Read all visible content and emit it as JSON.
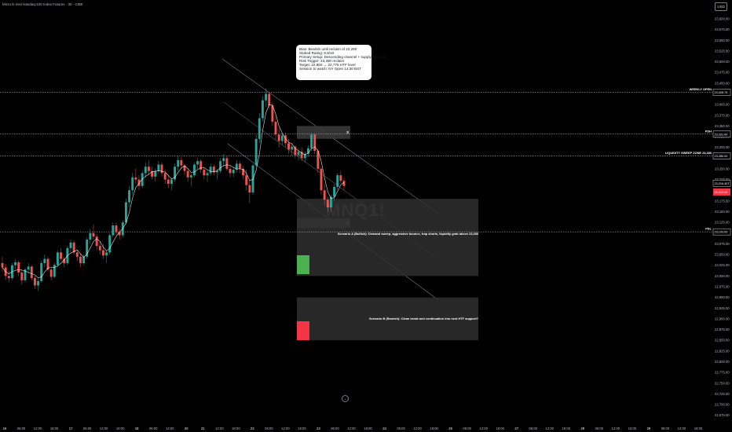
{
  "header": {
    "instrument_title": "Micro E-mini Nasdaq-100 Index Futures · 30 · CME",
    "currency": "USD"
  },
  "info_box": {
    "lines": [
      "Bias: Bearish until reclaim of 23,280",
      "Stoked Rating: 8.8/10",
      "Primary Setup: Descending channel + supply rejection",
      "Risk Trigger: 23,280 reclaim",
      "Target: 22,850 → 22,775 HTF level",
      "Session to watch: NY Open 14:30 BST"
    ]
  },
  "watermark": "MNQ1!",
  "scroll_icon": "down-arrow-icon",
  "chart_data": {
    "type": "candlestick",
    "price_axis": {
      "ylim": [
        22650,
        23625
      ],
      "ticks": [
        "23,600.00",
        "23,575.00",
        "23,550.00",
        "23,525.00",
        "23,500.00",
        "23,475.00",
        "23,450.00",
        "23,425.00",
        "23,400.00",
        "23,375.00",
        "23,350.00",
        "23,325.00",
        "23,300.00",
        "23,275.00",
        "23,250.00",
        "23,225.00",
        "23,200.00",
        "23,175.00",
        "23,150.00",
        "23,125.00",
        "23,100.00",
        "23,075.00",
        "23,050.00",
        "23,025.00",
        "23,000.00",
        "22,975.00",
        "22,950.00",
        "22,925.00",
        "22,900.00",
        "22,875.00",
        "22,850.00",
        "22,825.00",
        "22,800.00",
        "22,775.00",
        "22,750.00",
        "22,725.00",
        "22,700.00",
        "22,675.00"
      ],
      "tick_values": [
        23600,
        23575,
        23550,
        23525,
        23500,
        23475,
        23450,
        23425,
        23400,
        23375,
        23350,
        23325,
        23300,
        23275,
        23250,
        23225,
        23200,
        23175,
        23150,
        23125,
        23100,
        23075,
        23050,
        23025,
        23000,
        22975,
        22950,
        22925,
        22900,
        22875,
        22850,
        22825,
        22800,
        22775,
        22750,
        22725,
        22700,
        22675
      ]
    },
    "time_axis": {
      "labels": [
        "16",
        "06:00",
        "12:00",
        "18:00",
        "17",
        "06:00",
        "12:00",
        "18:00",
        "18",
        "06:00",
        "12:00",
        "20",
        "21",
        "12:00",
        "18:00",
        "22",
        "06:00",
        "12:00",
        "18:00",
        "23",
        "06:00",
        "12:00",
        "18:00",
        "24",
        "06:00",
        "12:00",
        "18:00",
        "25",
        "06:00",
        "12:00",
        "18:00",
        "27",
        "06:00",
        "12:00",
        "18:00",
        "28",
        "06:00",
        "12:00",
        "18:00",
        "29",
        "06:00",
        "12:00",
        "18:00"
      ]
    },
    "levels": [
      {
        "name": "WEEKLY OPEN",
        "value": 23428.75,
        "price_label": "23,428.75"
      },
      {
        "name": "PDH",
        "value": 23331.0,
        "price_label": "23,331.00"
      },
      {
        "name": "LIQUIDITY SWEEP ZONE 23,280",
        "value": 23280.0,
        "price_label": "23,280.00"
      },
      {
        "name": "PDL",
        "value": 23103.0,
        "price_label": "23,103.00"
      }
    ],
    "current_price": {
      "price_label": "23,210.25",
      "time_label": "23,216.40T"
    },
    "zones": [
      {
        "name": "supply-zone",
        "label": "S",
        "from": 23320,
        "to": 23350
      },
      {
        "name": "demand-zone",
        "label": "D",
        "from": 23112,
        "to": 23135
      },
      {
        "name": "scenario-a-box",
        "label": "Scenario A (Bullish): Demand sweep, aggressive bounce, trap shorts, liquidity grab above 23,280",
        "from": 23000,
        "to": 23180
      },
      {
        "name": "scenario-b-box",
        "label": "Scenario B (Bearish): Clean break and continuation into next HTF support?",
        "from": 22850,
        "to": 22950
      }
    ],
    "candles": [
      [
        23030,
        23045,
        23010,
        23020
      ],
      [
        23020,
        23028,
        22990,
        23000
      ],
      [
        23000,
        23012,
        22985,
        22995
      ],
      [
        22995,
        23030,
        22990,
        23025
      ],
      [
        23025,
        23040,
        23015,
        23032
      ],
      [
        23032,
        23036,
        23000,
        23008
      ],
      [
        23008,
        23012,
        22980,
        22990
      ],
      [
        22990,
        23020,
        22985,
        23015
      ],
      [
        23015,
        23030,
        23005,
        23022
      ],
      [
        23022,
        23025,
        22990,
        22995
      ],
      [
        22995,
        23000,
        22970,
        22978
      ],
      [
        22978,
        22995,
        22965,
        22988
      ],
      [
        22988,
        23035,
        22985,
        23030
      ],
      [
        23030,
        23050,
        23020,
        23040
      ],
      [
        23040,
        23045,
        23010,
        23015
      ],
      [
        23015,
        23020,
        22990,
        22998
      ],
      [
        22998,
        23030,
        22995,
        23026
      ],
      [
        23026,
        23060,
        23020,
        23055
      ],
      [
        23055,
        23065,
        23035,
        23040
      ],
      [
        23040,
        23045,
        23020,
        23030
      ],
      [
        23030,
        23070,
        23025,
        23065
      ],
      [
        23065,
        23085,
        23055,
        23078
      ],
      [
        23078,
        23082,
        23050,
        23055
      ],
      [
        23055,
        23060,
        23035,
        23045
      ],
      [
        23045,
        23052,
        23020,
        23030
      ],
      [
        23030,
        23050,
        23025,
        23045
      ],
      [
        23045,
        23090,
        23040,
        23085
      ],
      [
        23085,
        23110,
        23075,
        23100
      ],
      [
        23100,
        23120,
        23085,
        23092
      ],
      [
        23092,
        23098,
        23060,
        23070
      ],
      [
        23070,
        23080,
        23050,
        23060
      ],
      [
        23060,
        23075,
        23040,
        23048
      ],
      [
        23048,
        23060,
        23030,
        23055
      ],
      [
        23055,
        23100,
        23050,
        23095
      ],
      [
        23095,
        23125,
        23090,
        23118
      ],
      [
        23118,
        23125,
        23095,
        23102
      ],
      [
        23102,
        23110,
        23085,
        23095
      ],
      [
        23095,
        23130,
        23090,
        23125
      ],
      [
        23125,
        23180,
        23120,
        23172
      ],
      [
        23172,
        23210,
        23160,
        23200
      ],
      [
        23200,
        23240,
        23190,
        23230
      ],
      [
        23230,
        23250,
        23215,
        23225
      ],
      [
        23225,
        23235,
        23200,
        23210
      ],
      [
        23210,
        23245,
        23205,
        23240
      ],
      [
        23240,
        23265,
        23230,
        23255
      ],
      [
        23255,
        23270,
        23235,
        23245
      ],
      [
        23245,
        23255,
        23225,
        23232
      ],
      [
        23232,
        23250,
        23220,
        23245
      ],
      [
        23245,
        23268,
        23238,
        23260
      ],
      [
        23260,
        23265,
        23232,
        23240
      ],
      [
        23240,
        23248,
        23215,
        23225
      ],
      [
        23225,
        23235,
        23205,
        23215
      ],
      [
        23215,
        23230,
        23200,
        23225
      ],
      [
        23225,
        23262,
        23220,
        23255
      ],
      [
        23255,
        23280,
        23245,
        23270
      ],
      [
        23270,
        23278,
        23250,
        23258
      ],
      [
        23258,
        23262,
        23235,
        23245
      ],
      [
        23245,
        23250,
        23220,
        23230
      ],
      [
        23230,
        23240,
        23210,
        23235
      ],
      [
        23235,
        23265,
        23230,
        23260
      ],
      [
        23260,
        23275,
        23250,
        23268
      ],
      [
        23268,
        23272,
        23240,
        23248
      ],
      [
        23248,
        23255,
        23225,
        23235
      ],
      [
        23235,
        23245,
        23220,
        23240
      ],
      [
        23240,
        23262,
        23235,
        23255
      ],
      [
        23255,
        23260,
        23235,
        23242
      ],
      [
        23242,
        23250,
        23225,
        23245
      ],
      [
        23245,
        23275,
        23240,
        23268
      ],
      [
        23268,
        23285,
        23255,
        23275
      ],
      [
        23275,
        23280,
        23245,
        23250
      ],
      [
        23250,
        23258,
        23230,
        23240
      ],
      [
        23240,
        23252,
        23230,
        23248
      ],
      [
        23248,
        23270,
        23242,
        23262
      ],
      [
        23262,
        23268,
        23240,
        23250
      ],
      [
        23250,
        23256,
        23225,
        23235
      ],
      [
        23235,
        23248,
        23200,
        23212
      ],
      [
        23212,
        23225,
        23170,
        23195
      ],
      [
        23195,
        23262,
        23190,
        23258
      ],
      [
        23258,
        23330,
        23255,
        23320
      ],
      [
        23320,
        23380,
        23310,
        23368
      ],
      [
        23368,
        23420,
        23360,
        23410
      ],
      [
        23410,
        23438,
        23395,
        23425
      ],
      [
        23425,
        23430,
        23390,
        23398
      ],
      [
        23398,
        23405,
        23350,
        23360
      ],
      [
        23360,
        23372,
        23318,
        23330
      ],
      [
        23330,
        23345,
        23300,
        23315
      ],
      [
        23315,
        23335,
        23305,
        23328
      ],
      [
        23328,
        23335,
        23300,
        23310
      ],
      [
        23310,
        23320,
        23285,
        23295
      ],
      [
        23295,
        23310,
        23280,
        23302
      ],
      [
        23302,
        23305,
        23275,
        23282
      ],
      [
        23282,
        23298,
        23270,
        23290
      ],
      [
        23290,
        23300,
        23268,
        23275
      ],
      [
        23275,
        23290,
        23265,
        23285
      ],
      [
        23285,
        23305,
        23278,
        23298
      ],
      [
        23298,
        23335,
        23292,
        23330
      ],
      [
        23330,
        23332,
        23285,
        23292
      ],
      [
        23292,
        23296,
        23240,
        23250
      ],
      [
        23250,
        23255,
        23190,
        23200
      ],
      [
        23200,
        23215,
        23165,
        23178
      ],
      [
        23178,
        23185,
        23150,
        23160
      ],
      [
        23160,
        23190,
        23150,
        23185
      ],
      [
        23185,
        23215,
        23175,
        23208
      ],
      [
        23208,
        23240,
        23200,
        23235
      ],
      [
        23235,
        23245,
        23215,
        23222
      ],
      [
        23222,
        23230,
        23200,
        23210
      ]
    ]
  }
}
